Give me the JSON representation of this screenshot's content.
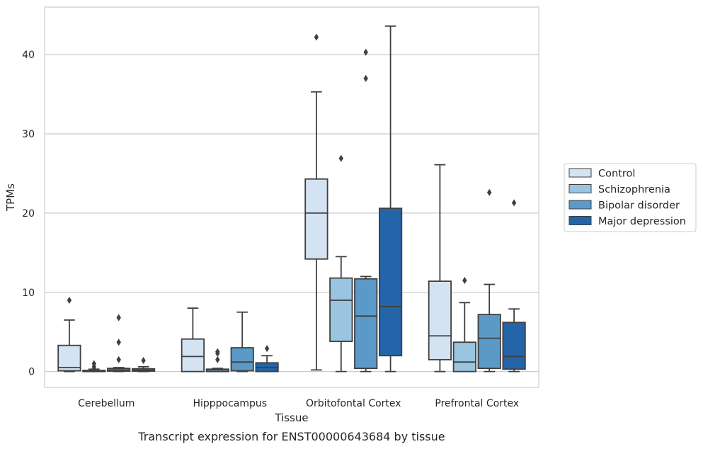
{
  "chart_data": {
    "type": "box",
    "title": "",
    "caption": "Transcript expression for ENST00000643684 by tissue",
    "xlabel": "Tissue",
    "ylabel": "TPMs",
    "ylim": [
      -2,
      46
    ],
    "yticks": [
      0,
      10,
      20,
      30,
      40
    ],
    "grid": "horizontal",
    "legend_position": "right",
    "categories": [
      "Cerebellum",
      "Hipppocampus",
      "Orbitofontal Cortex",
      "Prefrontal Cortex"
    ],
    "series": [
      {
        "name": "Control",
        "color": "#d4e3f2",
        "boxes": [
          {
            "whislo": 0,
            "q1": 0.1,
            "med": 0.5,
            "q3": 3.3,
            "whishi": 6.5,
            "fliers": [
              9.0
            ]
          },
          {
            "whislo": 0,
            "q1": 0,
            "med": 1.9,
            "q3": 4.1,
            "whishi": 8.0,
            "fliers": []
          },
          {
            "whislo": 0.2,
            "q1": 14.2,
            "med": 20.0,
            "q3": 24.3,
            "whishi": 35.3,
            "fliers": [
              42.2
            ]
          },
          {
            "whislo": 0,
            "q1": 1.5,
            "med": 4.5,
            "q3": 11.4,
            "whishi": 26.1,
            "fliers": []
          }
        ]
      },
      {
        "name": "Schizophrenia",
        "color": "#9ac4df",
        "boxes": [
          {
            "whislo": 0,
            "q1": 0,
            "med": 0.05,
            "q3": 0.15,
            "whishi": 0.3,
            "fliers": [
              0.3,
              0.6,
              1.0
            ]
          },
          {
            "whislo": 0,
            "q1": 0,
            "med": 0.2,
            "q3": 0.3,
            "whishi": 0.4,
            "fliers": [
              1.5,
              2.3,
              2.5
            ]
          },
          {
            "whislo": 0,
            "q1": 3.8,
            "med": 9.0,
            "q3": 11.8,
            "whishi": 14.5,
            "fliers": [
              26.9
            ]
          },
          {
            "whislo": 0,
            "q1": 0,
            "med": 1.2,
            "q3": 3.7,
            "whishi": 8.7,
            "fliers": [
              11.5
            ]
          }
        ]
      },
      {
        "name": "Bipolar disorder",
        "color": "#5b9ac8",
        "boxes": [
          {
            "whislo": 0,
            "q1": 0.05,
            "med": 0.2,
            "q3": 0.4,
            "whishi": 0.5,
            "fliers": [
              1.5,
              3.7,
              6.8
            ]
          },
          {
            "whislo": 0,
            "q1": 0.1,
            "med": 1.2,
            "q3": 3.0,
            "whishi": 7.5,
            "fliers": []
          },
          {
            "whislo": 0,
            "q1": 0.4,
            "med": 7.0,
            "q3": 11.7,
            "whishi": 12.0,
            "fliers": [
              37.0,
              40.3
            ]
          },
          {
            "whislo": 0,
            "q1": 0.4,
            "med": 4.2,
            "q3": 7.2,
            "whishi": 11.0,
            "fliers": [
              22.6
            ]
          }
        ]
      },
      {
        "name": "Major depression",
        "color": "#2464a9",
        "boxes": [
          {
            "whislo": 0,
            "q1": 0.05,
            "med": 0.15,
            "q3": 0.35,
            "whishi": 0.6,
            "fliers": [
              1.4
            ]
          },
          {
            "whislo": 0,
            "q1": 0,
            "med": 0.5,
            "q3": 1.1,
            "whishi": 2.0,
            "fliers": [
              2.9
            ]
          },
          {
            "whislo": 0,
            "q1": 2.0,
            "med": 8.2,
            "q3": 20.6,
            "whishi": 43.6,
            "fliers": []
          },
          {
            "whislo": 0,
            "q1": 0.3,
            "med": 1.9,
            "q3": 6.2,
            "whishi": 7.9,
            "fliers": [
              21.3
            ]
          }
        ]
      }
    ]
  }
}
